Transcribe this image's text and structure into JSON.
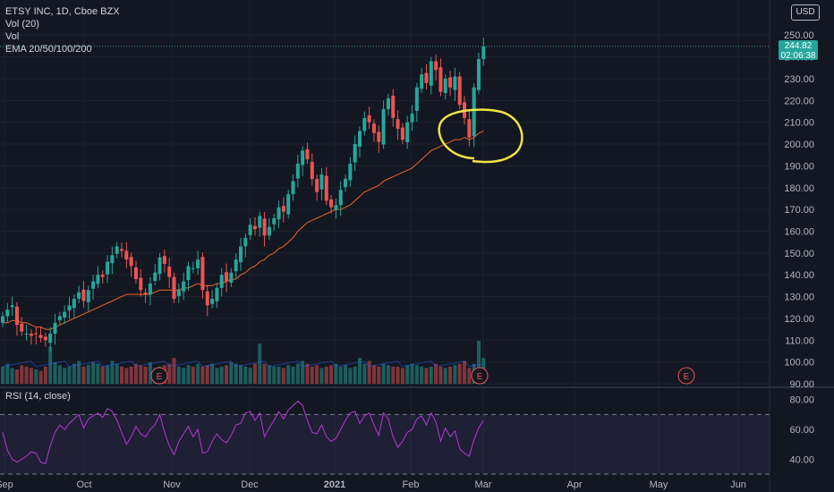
{
  "legend": {
    "symbol": "ETSY INC, 1D, Cboe BZX",
    "vol20": "Vol (20)",
    "vol": "Vol",
    "ema": "EMA 20/50/100/200"
  },
  "rsi_label": "RSI (14, close)",
  "currency": "USD",
  "last_price": {
    "value": "244.82",
    "countdown": "02:06:38"
  },
  "earnings_marker": "E",
  "colors": {
    "up": "#26a69a",
    "down": "#ef5350",
    "ema": "#e8672b",
    "rsi": "#b63ad3",
    "highlight": "#f0e442",
    "background": "#131722"
  },
  "chart_data": [
    {
      "type": "candlestick",
      "y_axis_ticks": [
        "250.00",
        "240.00",
        "230.00",
        "220.00",
        "210.00",
        "200.00",
        "190.00",
        "180.00",
        "170.00",
        "160.00",
        "150.00",
        "140.00",
        "130.00",
        "120.00",
        "110.00",
        "100.00",
        "90.00"
      ],
      "x_axis_ticks": [
        "Sep",
        "Oct",
        "Nov",
        "Dec",
        "2021",
        "Feb",
        "Mar",
        "Apr",
        "May",
        "Jun"
      ],
      "ylim": [
        90,
        255
      ],
      "close_series": [
        121,
        124,
        126,
        117,
        114,
        113,
        112,
        113,
        111,
        110,
        113,
        118,
        121,
        123,
        126,
        129,
        132,
        128,
        133,
        137,
        140,
        139,
        146,
        149,
        153,
        151,
        147,
        144,
        138,
        133,
        131,
        136,
        141,
        148,
        145,
        139,
        129,
        133,
        137,
        144,
        143,
        147,
        133,
        126,
        129,
        134,
        140,
        137,
        141,
        147,
        153,
        157,
        163,
        161,
        167,
        158,
        162,
        166,
        171,
        169,
        177,
        183,
        191,
        197,
        193,
        184,
        178,
        186,
        174,
        171,
        172,
        179,
        184,
        191,
        200,
        206,
        212,
        210,
        205,
        201,
        216,
        221,
        212,
        207,
        202,
        210,
        214,
        226,
        232,
        228,
        238,
        234,
        224,
        230,
        226,
        231,
        218,
        212,
        203,
        226,
        239,
        244.82
      ],
      "ema_series": [
        118,
        118,
        119,
        119,
        118,
        118,
        117,
        116,
        116,
        115,
        115,
        116,
        117,
        118,
        119,
        120,
        121,
        122,
        123,
        124,
        125,
        126,
        127,
        128,
        129,
        130,
        131,
        131,
        131,
        131,
        131,
        131,
        132,
        133,
        133,
        133,
        133,
        133,
        134,
        134,
        135,
        136,
        135,
        135,
        135,
        136,
        136,
        137,
        138,
        138,
        140,
        141,
        143,
        144,
        146,
        147,
        149,
        150,
        152,
        153,
        155,
        157,
        160,
        162,
        164,
        165,
        166,
        167,
        168,
        169,
        170,
        170,
        171,
        172,
        174,
        176,
        178,
        179,
        180,
        181,
        183,
        184,
        185,
        186,
        187,
        188,
        189,
        191,
        193,
        195,
        197,
        198,
        199,
        200,
        201,
        202,
        202,
        203,
        202,
        203,
        205,
        206
      ],
      "events": [
        "E",
        "E",
        "E"
      ]
    },
    {
      "type": "bar",
      "name": "Vol",
      "values": [
        12,
        14,
        11,
        10,
        13,
        12,
        11,
        10,
        9,
        12,
        26,
        15,
        13,
        11,
        12,
        14,
        16,
        12,
        13,
        15,
        14,
        12,
        13,
        16,
        14,
        12,
        11,
        12,
        14,
        13,
        12,
        15,
        11,
        12,
        13,
        14,
        18,
        12,
        11,
        13,
        12,
        14,
        12,
        13,
        14,
        11,
        12,
        13,
        15,
        14,
        13,
        12,
        11,
        14,
        28,
        14,
        13,
        12,
        12,
        11,
        13,
        12,
        14,
        16,
        14,
        12,
        13,
        11,
        12,
        13,
        14,
        12,
        13,
        11,
        12,
        18,
        14,
        16,
        13,
        12,
        14,
        13,
        12,
        12,
        11,
        13,
        14,
        13,
        12,
        11,
        12,
        14,
        12,
        11,
        12,
        13,
        14,
        16,
        11,
        14,
        30,
        18
      ]
    },
    {
      "type": "line",
      "name": "RSI (14, close)",
      "y_axis_ticks": [
        "80.00",
        "60.00",
        "40.00"
      ],
      "ylim": [
        30,
        84
      ],
      "bands": [
        70,
        30
      ],
      "values": [
        58,
        46,
        40,
        38,
        40,
        42,
        45,
        44,
        38,
        37,
        49,
        58,
        63,
        60,
        64,
        67,
        70,
        61,
        67,
        69,
        71,
        68,
        74,
        72,
        66,
        58,
        50,
        55,
        62,
        57,
        55,
        60,
        63,
        70,
        58,
        49,
        43,
        52,
        57,
        62,
        55,
        60,
        44,
        45,
        52,
        57,
        53,
        51,
        56,
        63,
        64,
        71,
        72,
        66,
        71,
        55,
        61,
        66,
        72,
        67,
        73,
        76,
        79,
        76,
        66,
        58,
        57,
        63,
        55,
        52,
        54,
        60,
        66,
        71,
        72,
        64,
        69,
        71,
        63,
        56,
        71,
        67,
        55,
        48,
        52,
        58,
        60,
        67,
        69,
        63,
        71,
        65,
        52,
        61,
        55,
        59,
        47,
        44,
        42,
        53,
        61,
        66
      ]
    }
  ]
}
